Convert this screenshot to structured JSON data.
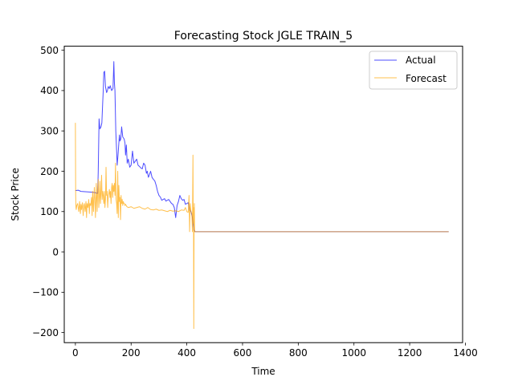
{
  "chart_data": {
    "type": "line",
    "title": "Forecasting Stock JGLE TRAIN_5",
    "xlabel": "Time",
    "ylabel": "Stock Price",
    "xlim": [
      -40,
      1390
    ],
    "ylim": [
      -225,
      510
    ],
    "xticks": [
      0,
      200,
      400,
      600,
      800,
      1000,
      1200,
      1400
    ],
    "yticks": [
      -200,
      -100,
      0,
      100,
      200,
      300,
      400,
      500
    ],
    "ytick_labels": [
      "−200",
      "−100",
      "0",
      "100",
      "200",
      "300",
      "400",
      "500"
    ],
    "grid": false,
    "legend_position": "top-right",
    "series": [
      {
        "name": "Actual",
        "color": "#0000ff",
        "x": [
          0,
          10,
          20,
          40,
          60,
          70,
          80,
          82,
          85,
          88,
          92,
          95,
          98,
          100,
          102,
          105,
          108,
          112,
          115,
          118,
          122,
          125,
          130,
          135,
          138,
          140,
          142,
          145,
          148,
          150,
          153,
          156,
          158,
          160,
          163,
          166,
          170,
          175,
          178,
          180,
          183,
          186,
          190,
          195,
          200,
          205,
          210,
          215,
          220,
          225,
          230,
          235,
          240,
          245,
          250,
          255,
          258,
          262,
          265,
          270,
          275,
          280,
          285,
          290,
          295,
          300,
          305,
          310,
          315,
          320,
          325,
          330,
          335,
          340,
          345,
          350,
          355,
          360,
          365,
          370,
          375,
          380,
          385,
          390,
          395,
          400,
          405,
          410,
          415,
          420,
          425,
          430,
          440,
          500,
          600,
          800,
          1000,
          1200,
          1340
        ],
        "y": [
          152,
          153,
          150,
          149,
          148,
          147,
          145,
          200,
          330,
          305,
          310,
          320,
          370,
          400,
          445,
          448,
          410,
          395,
          400,
          410,
          405,
          412,
          400,
          405,
          472,
          420,
          400,
          300,
          250,
          215,
          240,
          270,
          290,
          275,
          280,
          310,
          285,
          280,
          270,
          240,
          265,
          220,
          230,
          210,
          215,
          250,
          220,
          225,
          230,
          215,
          212,
          208,
          206,
          220,
          215,
          195,
          200,
          185,
          190,
          200,
          185,
          180,
          176,
          165,
          150,
          140,
          136,
          128,
          130,
          132,
          126,
          128,
          130,
          125,
          120,
          118,
          110,
          85,
          115,
          125,
          140,
          132,
          128,
          130,
          118,
          120,
          122,
          104,
          100,
          85,
          55,
          50,
          50,
          50,
          50,
          50,
          50,
          50,
          50
        ]
      },
      {
        "name": "Forecast",
        "color": "#ffa500",
        "x": [
          0,
          1,
          2,
          3,
          5,
          8,
          12,
          15,
          18,
          20,
          22,
          25,
          28,
          30,
          32,
          35,
          38,
          40,
          42,
          45,
          48,
          50,
          52,
          55,
          58,
          60,
          62,
          65,
          68,
          70,
          72,
          75,
          78,
          80,
          82,
          84,
          86,
          88,
          90,
          92,
          94,
          96,
          98,
          100,
          102,
          104,
          106,
          108,
          110,
          112,
          114,
          116,
          118,
          120,
          122,
          124,
          126,
          128,
          130,
          132,
          134,
          136,
          138,
          140,
          142,
          144,
          146,
          148,
          150,
          152,
          154,
          156,
          158,
          160,
          162,
          164,
          166,
          168,
          170,
          172,
          174,
          176,
          178,
          180,
          185,
          190,
          200,
          210,
          220,
          230,
          240,
          250,
          260,
          270,
          280,
          290,
          300,
          310,
          320,
          330,
          340,
          350,
          360,
          370,
          380,
          390,
          395,
          400,
          405,
          408,
          410,
          412,
          415,
          418,
          420,
          422,
          423,
          424,
          425,
          426,
          427,
          428,
          430,
          435,
          440,
          500,
          600,
          800,
          1000,
          1200,
          1340
        ],
        "y": [
          320,
          140,
          110,
          105,
          115,
          120,
          100,
          125,
          95,
          118,
          105,
          122,
          90,
          115,
          120,
          100,
          125,
          85,
          120,
          110,
          130,
          95,
          120,
          115,
          135,
          90,
          150,
          100,
          160,
          130,
          85,
          170,
          100,
          150,
          180,
          110,
          135,
          175,
          120,
          145,
          190,
          130,
          150,
          140,
          120,
          150,
          110,
          130,
          210,
          140,
          150,
          110,
          140,
          145,
          155,
          135,
          150,
          120,
          160,
          170,
          135,
          165,
          150,
          170,
          140,
          220,
          130,
          120,
          95,
          200,
          85,
          165,
          125,
          135,
          80,
          140,
          120,
          130,
          115,
          125,
          120,
          120,
          115,
          118,
          112,
          110,
          112,
          108,
          110,
          112,
          108,
          106,
          110,
          105,
          104,
          106,
          103,
          104,
          102,
          100,
          103,
          101,
          102,
          100,
          104,
          103,
          110,
          100,
          98,
          140,
          50,
          120,
          100,
          95,
          50,
          240,
          70,
          110,
          -190,
          60,
          120,
          50,
          50,
          50,
          50,
          50,
          50,
          50,
          50,
          50,
          50
        ]
      }
    ]
  }
}
